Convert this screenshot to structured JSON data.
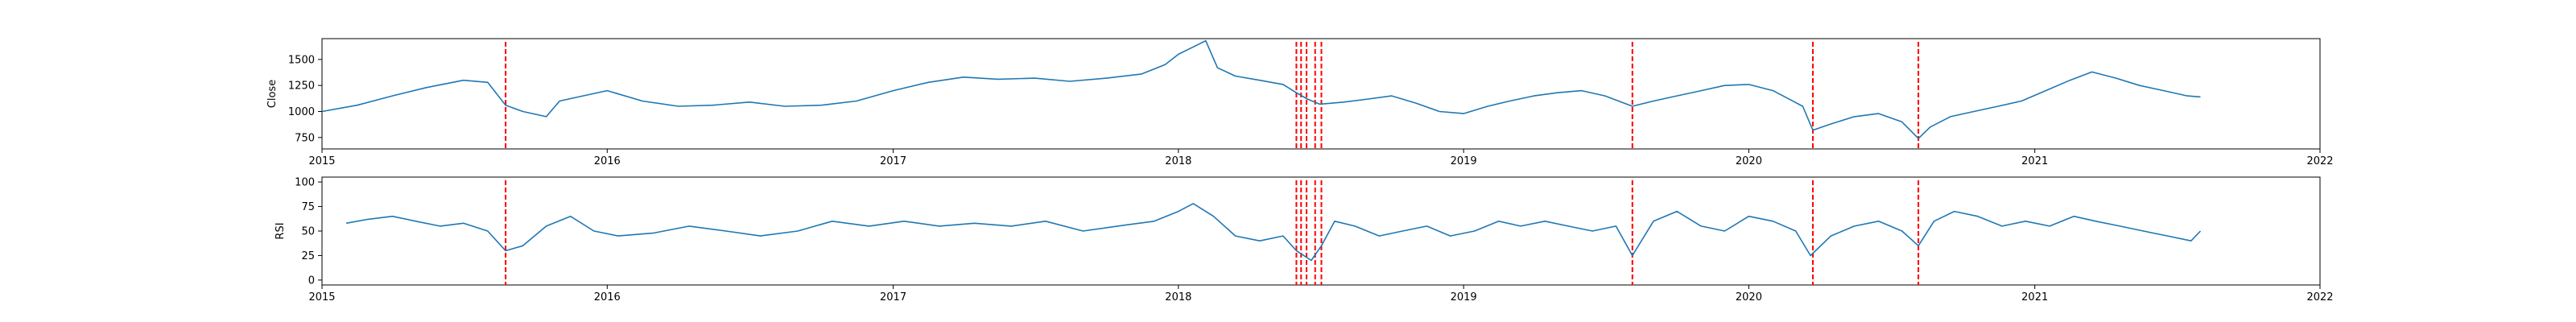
{
  "colors": {
    "series": "#1f77b4",
    "markers": "#ff0000",
    "axes": "#000000",
    "background": "#ffffff"
  },
  "chart_data": [
    {
      "type": "line",
      "title": "",
      "xlabel": "",
      "ylabel": "Close",
      "xlim": [
        "2015-01-01",
        "2022-01-01"
      ],
      "ylim": [
        640,
        1700
      ],
      "x_ticks": [
        "2015",
        "2016",
        "2017",
        "2018",
        "2019",
        "2020",
        "2021",
        "2022"
      ],
      "y_ticks": [
        750,
        1000,
        1250,
        1500
      ],
      "grid": false,
      "series": [
        {
          "x": [
            "2015-01-01",
            "2015-02-15",
            "2015-04-01",
            "2015-05-15",
            "2015-07-01",
            "2015-08-01",
            "2015-08-24",
            "2015-09-15",
            "2015-10-15",
            "2015-11-01",
            "2015-12-01",
            "2016-01-01",
            "2016-02-15",
            "2016-04-01",
            "2016-05-15",
            "2016-07-01",
            "2016-08-15",
            "2016-10-01",
            "2016-11-15",
            "2017-01-01",
            "2017-02-15",
            "2017-04-01",
            "2017-05-15",
            "2017-07-01",
            "2017-08-15",
            "2017-10-01",
            "2017-11-15",
            "2017-12-15",
            "2018-01-01",
            "2018-01-20",
            "2018-02-05",
            "2018-02-20",
            "2018-03-15",
            "2018-04-15",
            "2018-05-15",
            "2018-06-01",
            "2018-06-15",
            "2018-07-01",
            "2018-08-01",
            "2018-09-01",
            "2018-10-01",
            "2018-11-01",
            "2018-12-01",
            "2019-01-01",
            "2019-02-01",
            "2019-03-01",
            "2019-04-01",
            "2019-05-01",
            "2019-06-01",
            "2019-07-01",
            "2019-08-05",
            "2019-09-01",
            "2019-10-01",
            "2019-11-01",
            "2019-12-01",
            "2020-01-01",
            "2020-02-01",
            "2020-03-10",
            "2020-03-23",
            "2020-04-15",
            "2020-05-15",
            "2020-06-15",
            "2020-07-15",
            "2020-08-05",
            "2020-08-20",
            "2020-09-15",
            "2020-10-15",
            "2020-11-15",
            "2020-12-15",
            "2021-01-15",
            "2021-02-15",
            "2021-03-15",
            "2021-04-15",
            "2021-05-15",
            "2021-06-15",
            "2021-07-15",
            "2021-08-01"
          ],
          "values": [
            1000,
            1060,
            1150,
            1230,
            1300,
            1280,
            1060,
            1000,
            950,
            1100,
            1150,
            1200,
            1100,
            1050,
            1060,
            1090,
            1050,
            1060,
            1100,
            1200,
            1280,
            1330,
            1310,
            1320,
            1290,
            1320,
            1360,
            1450,
            1550,
            1620,
            1680,
            1420,
            1340,
            1300,
            1260,
            1180,
            1120,
            1070,
            1090,
            1120,
            1150,
            1080,
            1000,
            980,
            1050,
            1100,
            1150,
            1180,
            1200,
            1150,
            1050,
            1100,
            1150,
            1200,
            1250,
            1260,
            1200,
            1050,
            820,
            880,
            950,
            980,
            900,
            740,
            850,
            950,
            1000,
            1050,
            1100,
            1200,
            1300,
            1380,
            1320,
            1250,
            1200,
            1150,
            1140
          ]
        }
      ],
      "event_lines": [
        "2015-08-24",
        "2018-06-01",
        "2018-06-07",
        "2018-06-14",
        "2018-06-25",
        "2018-07-03",
        "2019-08-05",
        "2020-03-23",
        "2020-08-05"
      ]
    },
    {
      "type": "line",
      "title": "",
      "xlabel": "",
      "ylabel": "RSI",
      "xlim": [
        "2015-01-01",
        "2022-01-01"
      ],
      "ylim": [
        -5,
        105
      ],
      "x_ticks": [
        "2015",
        "2016",
        "2017",
        "2018",
        "2019",
        "2020",
        "2021",
        "2022"
      ],
      "y_ticks": [
        0,
        25,
        50,
        75,
        100
      ],
      "grid": false,
      "series": [
        {
          "x": [
            "2015-02-01",
            "2015-03-01",
            "2015-04-01",
            "2015-05-01",
            "2015-06-01",
            "2015-07-01",
            "2015-08-01",
            "2015-08-24",
            "2015-09-15",
            "2015-10-15",
            "2015-11-15",
            "2015-12-15",
            "2016-01-15",
            "2016-03-01",
            "2016-04-15",
            "2016-06-01",
            "2016-07-15",
            "2016-09-01",
            "2016-10-15",
            "2016-12-01",
            "2017-01-15",
            "2017-03-01",
            "2017-04-15",
            "2017-06-01",
            "2017-07-15",
            "2017-09-01",
            "2017-10-15",
            "2017-12-01",
            "2018-01-01",
            "2018-01-20",
            "2018-02-15",
            "2018-03-15",
            "2018-04-15",
            "2018-05-15",
            "2018-06-01",
            "2018-06-20",
            "2018-07-03",
            "2018-07-20",
            "2018-08-15",
            "2018-09-15",
            "2018-10-15",
            "2018-11-15",
            "2018-12-15",
            "2019-01-15",
            "2019-02-15",
            "2019-03-15",
            "2019-04-15",
            "2019-05-15",
            "2019-06-15",
            "2019-07-15",
            "2019-08-05",
            "2019-09-01",
            "2019-10-01",
            "2019-11-01",
            "2019-12-01",
            "2020-01-01",
            "2020-02-01",
            "2020-03-01",
            "2020-03-20",
            "2020-04-15",
            "2020-05-15",
            "2020-06-15",
            "2020-07-15",
            "2020-08-05",
            "2020-08-25",
            "2020-09-20",
            "2020-10-20",
            "2020-11-20",
            "2020-12-20",
            "2021-01-20",
            "2021-02-20",
            "2021-03-20",
            "2021-04-20",
            "2021-05-20",
            "2021-06-20",
            "2021-07-20",
            "2021-08-01"
          ],
          "values": [
            58,
            62,
            65,
            60,
            55,
            58,
            50,
            30,
            35,
            55,
            65,
            50,
            45,
            48,
            55,
            50,
            45,
            50,
            60,
            55,
            60,
            55,
            58,
            55,
            60,
            50,
            55,
            60,
            70,
            78,
            65,
            45,
            40,
            45,
            30,
            20,
            35,
            60,
            55,
            45,
            50,
            55,
            45,
            50,
            60,
            55,
            60,
            55,
            50,
            55,
            25,
            60,
            70,
            55,
            50,
            65,
            60,
            50,
            25,
            45,
            55,
            60,
            50,
            35,
            60,
            70,
            65,
            55,
            60,
            55,
            65,
            60,
            55,
            50,
            45,
            40,
            50
          ]
        }
      ],
      "event_lines": [
        "2015-08-24",
        "2018-06-01",
        "2018-06-07",
        "2018-06-14",
        "2018-06-25",
        "2018-07-03",
        "2019-08-05",
        "2020-03-23",
        "2020-08-05"
      ]
    }
  ]
}
